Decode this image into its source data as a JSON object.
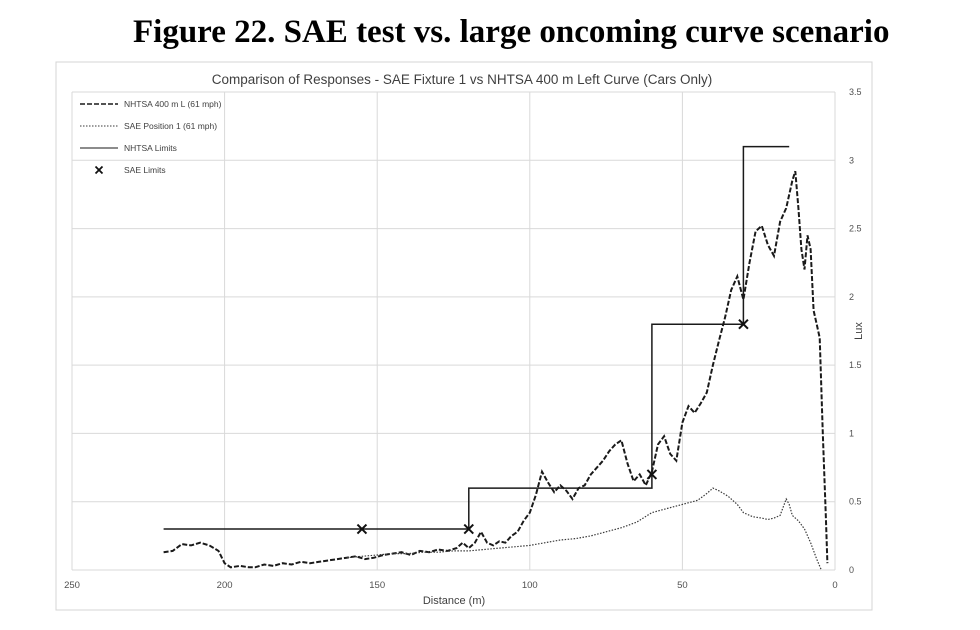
{
  "figure_title": "Figure 22. SAE test vs. large oncoming curve scenario",
  "chart_data": {
    "type": "line",
    "title": "Comparison of Responses - SAE Fixture 1 vs NHTSA 400 m Left Curve (Cars Only)",
    "xlabel": "Distance (m)",
    "ylabel": "Lux",
    "xlim": [
      250,
      0
    ],
    "ylim": [
      0,
      3.5
    ],
    "x_reversed": true,
    "y_axis_side": "right",
    "grid": true,
    "legend_position": "top-left",
    "x_ticks": [
      250,
      200,
      150,
      100,
      50,
      0
    ],
    "y_ticks": [
      0,
      0.5,
      1,
      1.5,
      2,
      2.5,
      3,
      3.5
    ],
    "series": [
      {
        "name": "NHTSA 400 m L (61 mph)",
        "style": "dashed",
        "x": [
          220,
          217,
          214,
          211,
          208,
          205,
          202,
          200,
          198,
          195,
          192,
          190,
          187,
          184,
          181,
          178,
          175,
          172,
          169,
          166,
          163,
          160,
          157,
          154,
          151,
          148,
          145,
          142,
          139,
          136,
          133,
          130,
          127,
          124,
          122,
          120,
          118,
          116,
          114,
          112,
          110,
          108,
          106,
          104,
          102,
          100,
          98,
          96,
          94,
          92,
          90,
          88,
          86,
          84,
          82,
          80,
          78,
          76,
          74,
          72,
          70,
          68,
          66,
          64,
          62,
          60,
          58,
          56,
          54,
          52,
          50,
          48,
          46,
          44,
          42,
          40,
          38,
          36,
          34,
          32,
          30,
          28,
          26,
          24,
          22,
          20,
          18,
          16,
          14,
          13,
          12,
          11,
          10,
          9,
          8,
          7,
          6,
          5,
          4,
          3,
          2.5
        ],
        "values": [
          0.13,
          0.14,
          0.19,
          0.18,
          0.2,
          0.18,
          0.14,
          0.05,
          0.02,
          0.03,
          0.02,
          0.02,
          0.04,
          0.03,
          0.05,
          0.04,
          0.06,
          0.05,
          0.06,
          0.07,
          0.08,
          0.09,
          0.1,
          0.08,
          0.09,
          0.11,
          0.12,
          0.13,
          0.11,
          0.14,
          0.13,
          0.15,
          0.14,
          0.16,
          0.2,
          0.16,
          0.2,
          0.28,
          0.2,
          0.18,
          0.21,
          0.2,
          0.25,
          0.28,
          0.36,
          0.42,
          0.55,
          0.72,
          0.64,
          0.57,
          0.62,
          0.58,
          0.52,
          0.6,
          0.62,
          0.7,
          0.75,
          0.8,
          0.87,
          0.92,
          0.95,
          0.78,
          0.65,
          0.7,
          0.62,
          0.72,
          0.92,
          0.98,
          0.85,
          0.8,
          1.08,
          1.2,
          1.15,
          1.22,
          1.3,
          1.5,
          1.68,
          1.85,
          2.05,
          2.15,
          1.98,
          2.25,
          2.48,
          2.52,
          2.38,
          2.3,
          2.55,
          2.65,
          2.85,
          2.92,
          2.65,
          2.35,
          2.2,
          2.45,
          2.35,
          1.9,
          1.8,
          1.7,
          1.0,
          0.4,
          0.05
        ]
      },
      {
        "name": "SAE Position 1 (61 mph)",
        "style": "dotted",
        "x": [
          160,
          155,
          150,
          145,
          140,
          135,
          130,
          125,
          120,
          115,
          110,
          105,
          100,
          95,
          90,
          85,
          80,
          75,
          70,
          65,
          60,
          55,
          50,
          45,
          42,
          40,
          38,
          35,
          32,
          30,
          27,
          24,
          22,
          20,
          18,
          16,
          15,
          14,
          12,
          10,
          8,
          6,
          4.5
        ],
        "values": [
          0.09,
          0.1,
          0.11,
          0.12,
          0.12,
          0.13,
          0.13,
          0.14,
          0.14,
          0.15,
          0.16,
          0.17,
          0.18,
          0.2,
          0.22,
          0.23,
          0.25,
          0.28,
          0.31,
          0.35,
          0.42,
          0.45,
          0.48,
          0.51,
          0.56,
          0.6,
          0.58,
          0.54,
          0.48,
          0.42,
          0.39,
          0.38,
          0.37,
          0.38,
          0.4,
          0.52,
          0.48,
          0.4,
          0.36,
          0.3,
          0.2,
          0.08,
          0.0
        ]
      },
      {
        "name": "NHTSA Limits",
        "style": "solid",
        "x": [
          220,
          120,
          120,
          60,
          60,
          30,
          30,
          15
        ],
        "values": [
          0.3,
          0.3,
          0.6,
          0.6,
          1.8,
          1.8,
          3.1,
          3.1
        ]
      },
      {
        "name": "SAE Limits",
        "style": "marker-x",
        "x": [
          155,
          120,
          60,
          30
        ],
        "values": [
          0.3,
          0.3,
          0.7,
          1.8
        ]
      }
    ]
  }
}
